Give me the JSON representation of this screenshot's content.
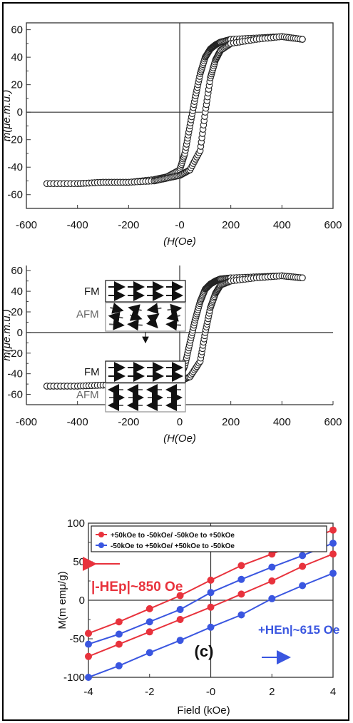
{
  "chart_data": [
    {
      "type": "scatter",
      "xlabel": "(H(Oe)",
      "ylabel": "m(μe.m.u.)",
      "xlim": [
        -600,
        600
      ],
      "ylim": [
        -70,
        65
      ],
      "xticks": [
        -600,
        -400,
        -200,
        0,
        200,
        400,
        600
      ],
      "xtick_labels": [
        "-600",
        "-400",
        "-200",
        "-0",
        "200",
        "400",
        "600"
      ],
      "yticks": [
        -60,
        -40,
        -20,
        0,
        20,
        40,
        60
      ],
      "yticks_minor": [
        -50,
        -30,
        -10,
        10,
        30,
        50
      ],
      "series": [
        {
          "x": [
            -520,
            -400,
            -300,
            -200,
            -100,
            -50,
            0,
            20,
            40,
            60,
            80,
            100,
            120,
            140,
            160,
            200,
            300,
            400,
            480
          ],
          "y": [
            -52,
            -52,
            -51,
            -51,
            -49,
            -47,
            -42,
            -30,
            -10,
            10,
            28,
            40,
            46,
            49,
            51,
            53,
            54,
            55,
            53
          ]
        },
        {
          "x": [
            -520,
            -400,
            -300,
            -200,
            -100,
            -50,
            0,
            40,
            80,
            100,
            120,
            140,
            160,
            200,
            300,
            400,
            480
          ],
          "y": [
            -52,
            -52,
            -51,
            -51,
            -50,
            -48,
            -46,
            -42,
            -28,
            0,
            25,
            38,
            45,
            50,
            53,
            55,
            53
          ]
        }
      ]
    },
    {
      "type": "scatter",
      "xlabel": "(H(Oe)",
      "ylabel": "m(μe.m.u.)",
      "xlim": [
        -600,
        600
      ],
      "ylim": [
        -70,
        65
      ],
      "xticks": [
        -600,
        -400,
        -200,
        0,
        200,
        400,
        600
      ],
      "xtick_labels": [
        "-600",
        "-400",
        "-200",
        "0",
        "200",
        "400",
        "600"
      ],
      "yticks": [
        -60,
        -40,
        -20,
        0,
        20,
        40,
        60
      ],
      "yticks_minor": [
        -50,
        -30,
        -10,
        10,
        30,
        50
      ],
      "series": [
        {
          "x": [
            -520,
            -400,
            -300,
            -200,
            -100,
            -50,
            0,
            20,
            40,
            60,
            80,
            100,
            120,
            140,
            160,
            200,
            300,
            400,
            480
          ],
          "y": [
            -52,
            -52,
            -51,
            -51,
            -50,
            -48,
            -44,
            -32,
            -10,
            12,
            30,
            42,
            47,
            50,
            52,
            53,
            54,
            55,
            53
          ]
        },
        {
          "x": [
            -520,
            -400,
            -300,
            -200,
            -100,
            -50,
            0,
            40,
            80,
            100,
            120,
            140,
            160,
            200,
            300,
            400,
            480
          ],
          "y": [
            -52,
            -52,
            -51,
            -51,
            -50,
            -49,
            -47,
            -43,
            -28,
            0,
            24,
            38,
            46,
            50,
            53,
            55,
            53
          ]
        }
      ],
      "inset": {
        "top": {
          "fm_label": "FM",
          "afm_label": "AFM"
        },
        "bottom": {
          "fm_label": "FM",
          "afm_label": "AFM"
        }
      }
    },
    {
      "type": "line",
      "xlabel": "Field  (kOe)",
      "ylabel": "M(m emμ/g)",
      "xlim": [
        -4,
        4
      ],
      "ylim": [
        -100,
        100
      ],
      "xticks": [
        -4,
        -2,
        0,
        2,
        4
      ],
      "xtick_labels": [
        "-4",
        "-2",
        "-0",
        "2",
        "4"
      ],
      "yticks": [
        -100,
        -50,
        0,
        50,
        100
      ],
      "yticks_minor": [
        -75,
        -25,
        25,
        75
      ],
      "legend": [
        {
          "label": "+50kOe to -50kOe/ -50kOe to +50kOe",
          "color": "#e8323c"
        },
        {
          "label": "-50kOe to +50kOe/ +50kOe to -50kOe",
          "color": "#3a56e0"
        }
      ],
      "series": [
        {
          "name": "+50kOe to -50kOe/ -50kOe to +50kOe",
          "color": "#e8323c",
          "x": [
            -4,
            -3,
            -2,
            -1,
            0,
            1,
            2,
            3,
            4
          ],
          "y": [
            -43,
            -28,
            -11,
            6,
            26,
            45,
            60,
            76,
            91
          ]
        },
        {
          "name": "+50kOe to -50kOe/ -50kOe to +50kOe",
          "color": "#e8323c",
          "x": [
            -4,
            -3,
            -2,
            -1,
            0,
            1,
            2,
            3,
            4
          ],
          "y": [
            -73,
            -57,
            -41,
            -25,
            -9,
            8,
            25,
            44,
            60
          ]
        },
        {
          "name": "-50kOe to +50kOe/ +50kOe to -50kOe",
          "color": "#3a56e0",
          "x": [
            -4,
            -3,
            -2,
            -1,
            0,
            1,
            2,
            3,
            4
          ],
          "y": [
            -57,
            -44,
            -28,
            -12,
            10,
            27,
            43,
            58,
            74
          ]
        },
        {
          "name": "-50kOe to +50kOe/ +50kOe to -50kOe",
          "color": "#3a56e0",
          "x": [
            -4,
            -3,
            -2,
            -1,
            0,
            1,
            2,
            3,
            4
          ],
          "y": [
            -100,
            -85,
            -68,
            -52,
            -35,
            -19,
            2,
            19,
            35
          ]
        }
      ],
      "annotations": [
        {
          "text": "|-HEp|~850 Oe",
          "color": "#e8323c"
        },
        {
          "text": "+HEn|~615 Oe",
          "color": "#3a56e0"
        },
        {
          "text": "(c)",
          "color": "#111111"
        }
      ]
    }
  ]
}
